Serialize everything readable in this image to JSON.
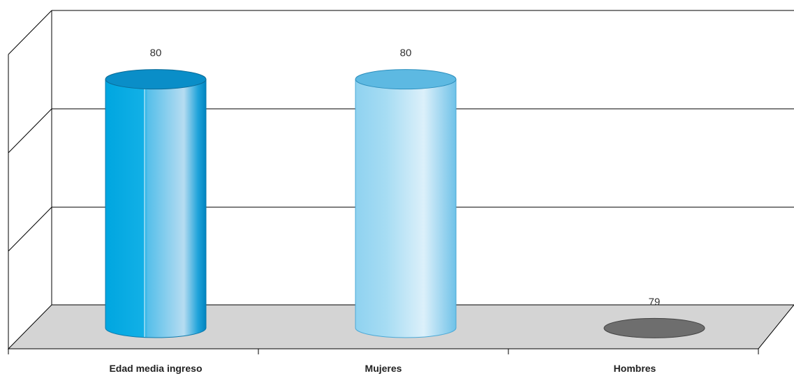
{
  "chart_data": {
    "type": "bar",
    "style": "3d-cylinder",
    "categories": [
      "Edad media ingreso",
      "Mujeres",
      "Hombres"
    ],
    "values": [
      80,
      80,
      79
    ],
    "data_labels": [
      "80",
      "80",
      "79"
    ],
    "ylim": [
      78.9,
      80.1
    ],
    "title": "",
    "xlabel": "",
    "ylabel": "",
    "grid": true,
    "legend": "none",
    "colors": {
      "bars": [
        "#00a7e1",
        "#a8dcf2",
        "#9a9a9a"
      ],
      "floor": "#d4d4d4",
      "axis": "#000000"
    }
  }
}
